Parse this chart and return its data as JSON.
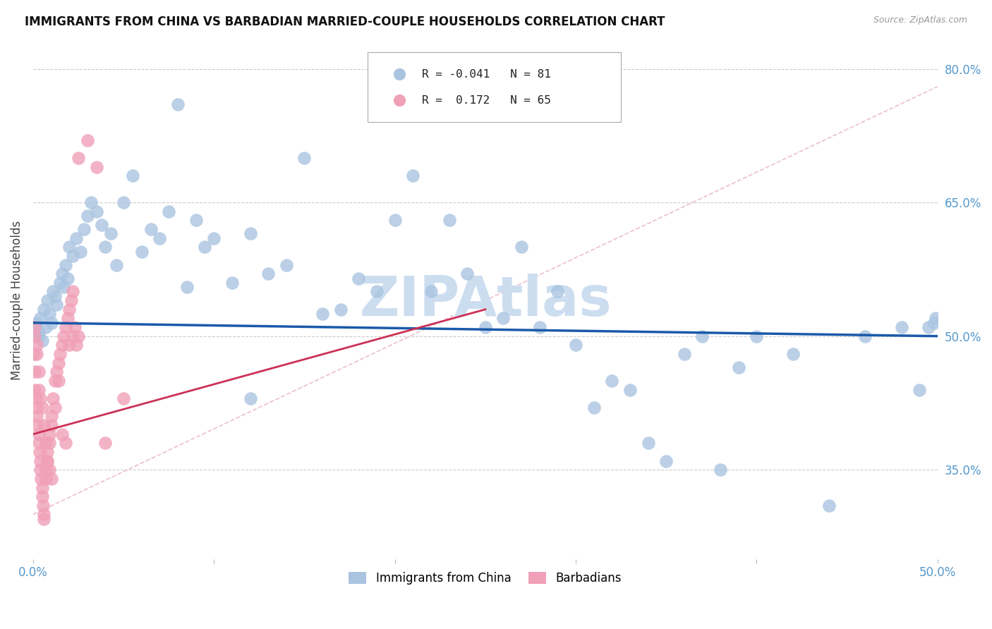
{
  "title": "IMMIGRANTS FROM CHINA VS BARBADIAN MARRIED-COUPLE HOUSEHOLDS CORRELATION CHART",
  "source": "Source: ZipAtlas.com",
  "ylabel": "Married-couple Households",
  "y_ticks_right": [
    0.35,
    0.5,
    0.65,
    0.8
  ],
  "y_tick_labels_right": [
    "35.0%",
    "50.0%",
    "65.0%",
    "80.0%"
  ],
  "xlim": [
    0.0,
    0.5
  ],
  "ylim": [
    0.25,
    0.83
  ],
  "blue_R": -0.041,
  "blue_N": 81,
  "pink_R": 0.172,
  "pink_N": 65,
  "blue_color": "#aac4e0",
  "pink_color": "#f0a0b8",
  "blue_line_color": "#1a5aaa",
  "pink_line_color": "#cc3055",
  "dashed_line_color": "#e8b8c8",
  "watermark_color": "#ccddf0",
  "background_color": "#ffffff",
  "grid_color": "#cccccc",
  "blue_scatter_x": [
    0.001,
    0.002,
    0.003,
    0.003,
    0.004,
    0.005,
    0.006,
    0.007,
    0.008,
    0.009,
    0.01,
    0.011,
    0.012,
    0.013,
    0.015,
    0.016,
    0.017,
    0.018,
    0.019,
    0.02,
    0.022,
    0.024,
    0.026,
    0.028,
    0.03,
    0.032,
    0.035,
    0.038,
    0.04,
    0.043,
    0.046,
    0.05,
    0.055,
    0.06,
    0.065,
    0.07,
    0.075,
    0.08,
    0.085,
    0.09,
    0.095,
    0.1,
    0.11,
    0.12,
    0.13,
    0.14,
    0.15,
    0.16,
    0.17,
    0.18,
    0.19,
    0.2,
    0.21,
    0.22,
    0.23,
    0.24,
    0.25,
    0.26,
    0.27,
    0.28,
    0.29,
    0.3,
    0.31,
    0.32,
    0.33,
    0.34,
    0.35,
    0.36,
    0.37,
    0.38,
    0.39,
    0.4,
    0.42,
    0.44,
    0.46,
    0.48,
    0.49,
    0.495,
    0.498,
    0.499,
    0.12
  ],
  "blue_scatter_y": [
    0.51,
    0.515,
    0.5,
    0.505,
    0.52,
    0.495,
    0.53,
    0.51,
    0.54,
    0.525,
    0.515,
    0.55,
    0.545,
    0.535,
    0.56,
    0.57,
    0.555,
    0.58,
    0.565,
    0.6,
    0.59,
    0.61,
    0.595,
    0.62,
    0.635,
    0.65,
    0.64,
    0.625,
    0.6,
    0.615,
    0.58,
    0.65,
    0.68,
    0.595,
    0.62,
    0.61,
    0.64,
    0.76,
    0.555,
    0.63,
    0.6,
    0.61,
    0.56,
    0.615,
    0.57,
    0.58,
    0.7,
    0.525,
    0.53,
    0.565,
    0.55,
    0.63,
    0.68,
    0.55,
    0.63,
    0.57,
    0.51,
    0.52,
    0.6,
    0.51,
    0.55,
    0.49,
    0.42,
    0.45,
    0.44,
    0.38,
    0.36,
    0.48,
    0.5,
    0.35,
    0.465,
    0.5,
    0.48,
    0.31,
    0.5,
    0.51,
    0.44,
    0.51,
    0.515,
    0.52,
    0.43
  ],
  "pink_scatter_x": [
    0.0005,
    0.001,
    0.001,
    0.0015,
    0.002,
    0.002,
    0.0025,
    0.003,
    0.003,
    0.0035,
    0.004,
    0.004,
    0.0045,
    0.005,
    0.005,
    0.0055,
    0.006,
    0.006,
    0.007,
    0.007,
    0.008,
    0.008,
    0.009,
    0.009,
    0.01,
    0.01,
    0.011,
    0.012,
    0.013,
    0.014,
    0.015,
    0.016,
    0.017,
    0.018,
    0.019,
    0.02,
    0.021,
    0.022,
    0.023,
    0.024,
    0.025,
    0.001,
    0.001,
    0.002,
    0.002,
    0.003,
    0.003,
    0.004,
    0.005,
    0.006,
    0.007,
    0.008,
    0.009,
    0.01,
    0.012,
    0.014,
    0.016,
    0.018,
    0.02,
    0.022,
    0.025,
    0.03,
    0.035,
    0.04,
    0.05
  ],
  "pink_scatter_y": [
    0.48,
    0.46,
    0.44,
    0.43,
    0.42,
    0.41,
    0.4,
    0.39,
    0.38,
    0.37,
    0.36,
    0.35,
    0.34,
    0.33,
    0.32,
    0.31,
    0.3,
    0.295,
    0.34,
    0.35,
    0.36,
    0.37,
    0.38,
    0.39,
    0.4,
    0.41,
    0.43,
    0.45,
    0.46,
    0.47,
    0.48,
    0.49,
    0.5,
    0.51,
    0.52,
    0.53,
    0.54,
    0.55,
    0.51,
    0.49,
    0.5,
    0.51,
    0.5,
    0.49,
    0.48,
    0.46,
    0.44,
    0.43,
    0.42,
    0.4,
    0.38,
    0.36,
    0.35,
    0.34,
    0.42,
    0.45,
    0.39,
    0.38,
    0.49,
    0.5,
    0.7,
    0.72,
    0.69,
    0.38,
    0.43
  ],
  "blue_trend_x": [
    0.0,
    0.5
  ],
  "blue_trend_y": [
    0.515,
    0.5
  ],
  "pink_trend_x": [
    0.0,
    0.25
  ],
  "pink_trend_y": [
    0.39,
    0.53
  ],
  "dash_line_x": [
    0.0,
    0.5
  ],
  "dash_line_y": [
    0.3,
    0.78
  ]
}
